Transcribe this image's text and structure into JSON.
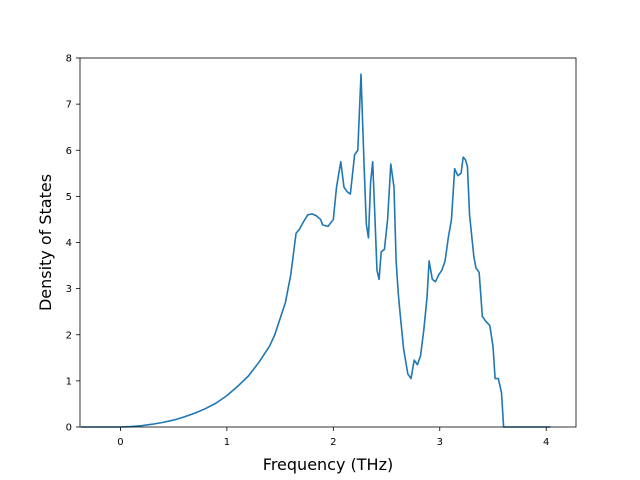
{
  "chart_data": {
    "type": "line",
    "title": "",
    "xlabel": "Frequency (THz)",
    "ylabel": "Density of States",
    "xlim": [
      -0.38,
      4.28
    ],
    "ylim": [
      0,
      8
    ],
    "xticks": [
      0,
      1,
      2,
      3,
      4
    ],
    "yticks": [
      0,
      1,
      2,
      3,
      4,
      5,
      6,
      7,
      8
    ],
    "grid": false,
    "legend": "none",
    "color": "#1f77b4",
    "series": [
      {
        "x": [
          -0.37,
          -0.2,
          0.0,
          0.1,
          0.2,
          0.3,
          0.4,
          0.5,
          0.6,
          0.7,
          0.8,
          0.9,
          1.0,
          1.1,
          1.2,
          1.3,
          1.4,
          1.45,
          1.5,
          1.55,
          1.6,
          1.65,
          1.68,
          1.72,
          1.76,
          1.8,
          1.84,
          1.88,
          1.9,
          1.95,
          2.0,
          2.03,
          2.07,
          2.1,
          2.13,
          2.16,
          2.2,
          2.23,
          2.26,
          2.29,
          2.31,
          2.33,
          2.35,
          2.37,
          2.39,
          2.41,
          2.43,
          2.45,
          2.48,
          2.51,
          2.54,
          2.57,
          2.59,
          2.61,
          2.63,
          2.66,
          2.7,
          2.73,
          2.76,
          2.79,
          2.82,
          2.85,
          2.88,
          2.9,
          2.93,
          2.96,
          2.99,
          3.02,
          3.05,
          3.08,
          3.11,
          3.14,
          3.17,
          3.2,
          3.22,
          3.24,
          3.26,
          3.28,
          3.3,
          3.32,
          3.34,
          3.37,
          3.4,
          3.43,
          3.47,
          3.5,
          3.52,
          3.55,
          3.58,
          3.6,
          3.62,
          3.64,
          3.66,
          3.68,
          3.7,
          3.75,
          3.8,
          3.9,
          4.04
        ],
        "y": [
          0,
          0,
          0,
          0.01,
          0.03,
          0.06,
          0.1,
          0.15,
          0.22,
          0.3,
          0.4,
          0.52,
          0.68,
          0.88,
          1.1,
          1.4,
          1.75,
          2.0,
          2.35,
          2.7,
          3.3,
          4.2,
          4.28,
          4.45,
          4.6,
          4.62,
          4.58,
          4.5,
          4.38,
          4.35,
          4.5,
          5.2,
          5.75,
          5.2,
          5.1,
          5.05,
          5.9,
          6.0,
          7.65,
          5.6,
          4.4,
          4.1,
          5.3,
          5.75,
          4.6,
          3.4,
          3.2,
          3.8,
          3.85,
          4.5,
          5.7,
          5.2,
          3.6,
          2.9,
          2.4,
          1.7,
          1.15,
          1.05,
          1.45,
          1.35,
          1.55,
          2.1,
          2.8,
          3.6,
          3.2,
          3.15,
          3.3,
          3.4,
          3.6,
          4.1,
          4.5,
          5.6,
          5.45,
          5.5,
          5.85,
          5.8,
          5.65,
          4.6,
          4.15,
          3.7,
          3.45,
          3.35,
          2.4,
          2.3,
          2.2,
          1.75,
          1.05,
          1.05,
          0.75,
          0.0,
          0.0,
          0,
          0,
          0,
          0,
          0,
          0,
          0,
          0
        ]
      }
    ]
  }
}
